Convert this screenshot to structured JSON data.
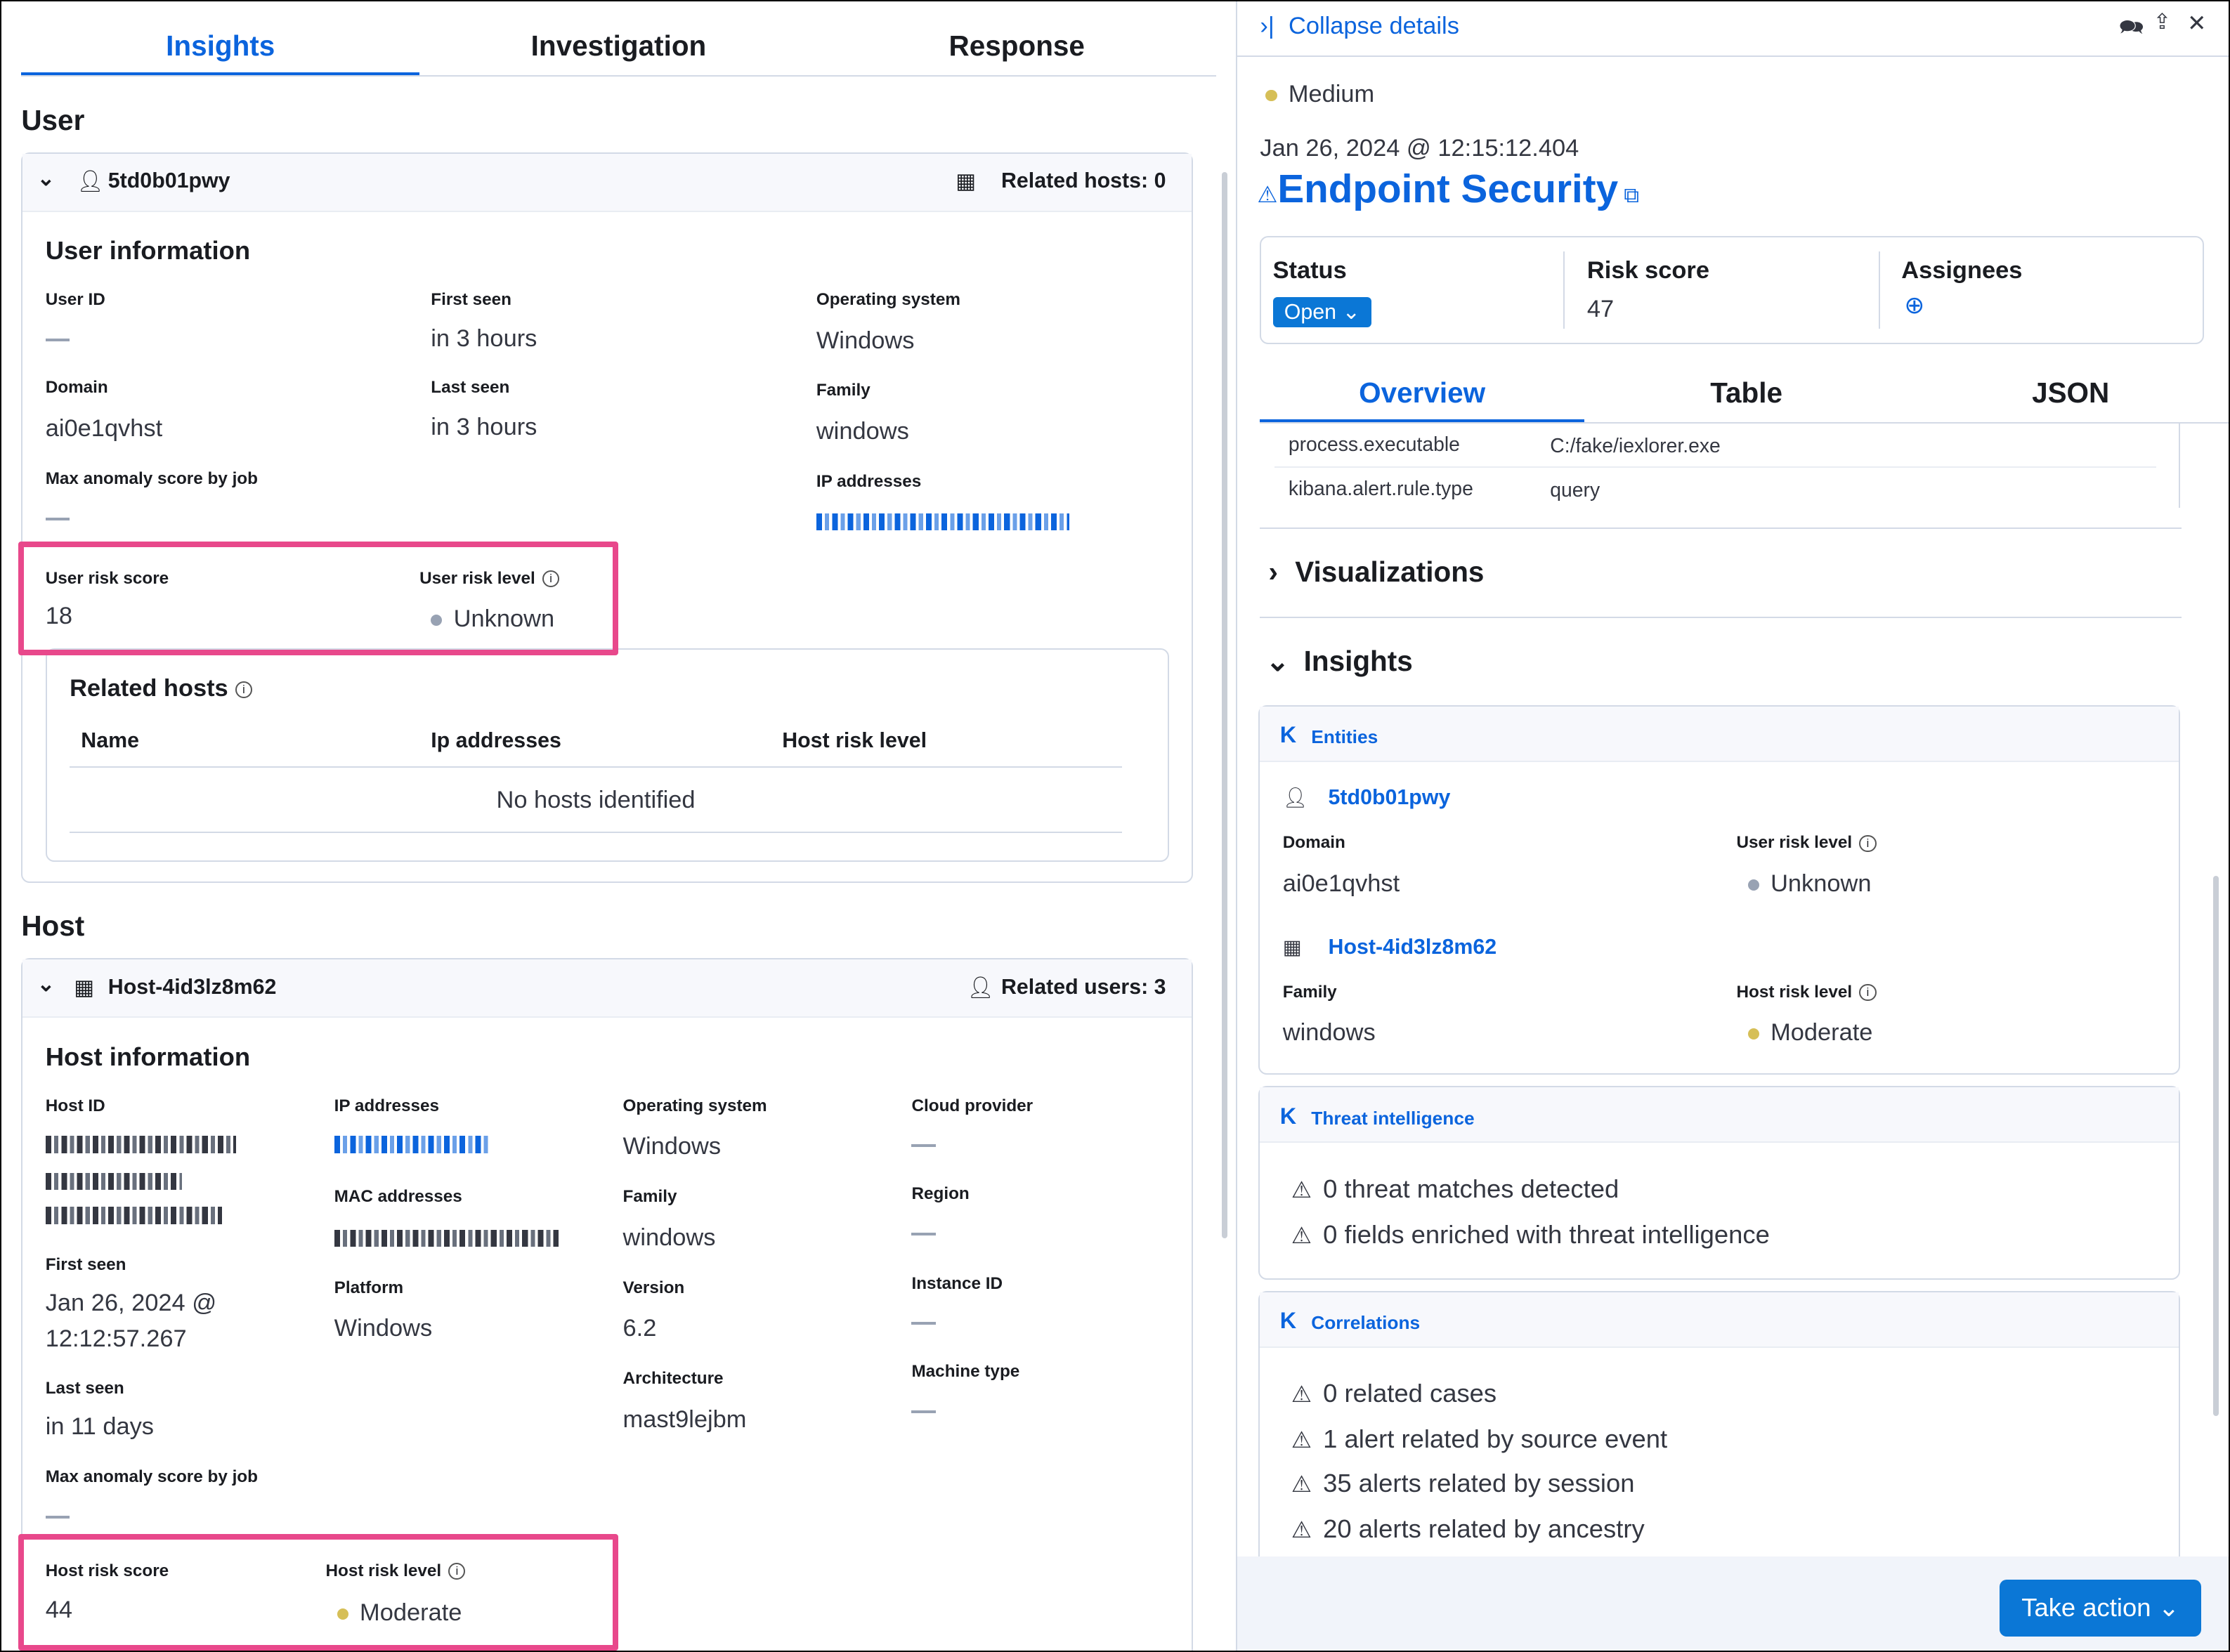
{
  "tabs": [
    "Insights",
    "Investigation",
    "Response"
  ],
  "user": {
    "section_title": "User",
    "name": "5td0b01pwy",
    "related_hosts_label": "Related hosts: 0",
    "info_title": "User information",
    "user_id_label": "User ID",
    "first_seen_label": "First seen",
    "first_seen": "in 3 hours",
    "os_label": "Operating system",
    "os": "Windows",
    "domain_label": "Domain",
    "domain": "ai0e1qvhst",
    "last_seen_label": "Last seen",
    "last_seen": "in 3 hours",
    "family_label": "Family",
    "family": "windows",
    "max_anomaly_label": "Max anomaly score by job",
    "ip_label": "IP addresses",
    "risk_score_label": "User risk score",
    "risk_score": "18",
    "risk_level_label": "User risk level",
    "risk_level": "Unknown",
    "related_hosts": {
      "title": "Related hosts",
      "columns": [
        "Name",
        "Ip addresses",
        "Host risk level"
      ],
      "empty": "No hosts identified"
    }
  },
  "host": {
    "section_title": "Host",
    "name": "Host-4id3lz8m62",
    "related_users_label": "Related users: 3",
    "info_title": "Host information",
    "host_id_label": "Host ID",
    "ip_label": "IP addresses",
    "os_label": "Operating system",
    "os": "Windows",
    "cloud_label": "Cloud provider",
    "mac_label": "MAC addresses",
    "family_label": "Family",
    "family": "windows",
    "region_label": "Region",
    "first_seen_label": "First seen",
    "first_seen": "Jan 26, 2024 @",
    "first_seen_time": "12:12:57.267",
    "platform_label": "Platform",
    "platform": "Windows",
    "version_label": "Version",
    "version": "6.2",
    "instance_label": "Instance ID",
    "last_seen_label": "Last seen",
    "last_seen": "in 11 days",
    "arch_label": "Architecture",
    "arch": "mast9lejbm",
    "machine_label": "Machine type",
    "max_anomaly_label": "Max anomaly score by job",
    "risk_score_label": "Host risk score",
    "risk_score": "44",
    "risk_level_label": "Host risk level",
    "risk_level": "Moderate"
  },
  "details": {
    "collapse_label": "Collapse details",
    "severity": "Medium",
    "timestamp": "Jan 26, 2024 @ 12:15:12.404",
    "rule_name": "Endpoint Security",
    "status_label": "Status",
    "status": "Open",
    "risk_score_label": "Risk score",
    "risk_score": "47",
    "assignees_label": "Assignees",
    "tabs": [
      "Overview",
      "Table",
      "JSON"
    ],
    "fields": [
      {
        "key": "process.executable",
        "value": "C:/fake/iexlorer.exe"
      },
      {
        "key": "kibana.alert.rule.type",
        "value": "query"
      }
    ],
    "visualizations_label": "Visualizations",
    "insights_label": "Insights",
    "entities": {
      "title": "Entities",
      "user": "5td0b01pwy",
      "domain_label": "Domain",
      "domain": "ai0e1qvhst",
      "user_risk_label": "User risk level",
      "user_risk": "Unknown",
      "host": "Host-4id3lz8m62",
      "family_label": "Family",
      "family": "windows",
      "host_risk_label": "Host risk level",
      "host_risk": "Moderate"
    },
    "threat": {
      "title": "Threat intelligence",
      "items": [
        "0 threat matches detected",
        "0 fields enriched with threat intelligence"
      ]
    },
    "correlations": {
      "title": "Correlations",
      "items": [
        "0 related cases",
        "1 alert related by source event",
        "35 alerts related by session",
        "20 alerts related by ancestry"
      ]
    },
    "take_action": "Take action"
  },
  "colors": {
    "accent": "#0b64dd",
    "highlight": "#e8488b",
    "medium": "#d6bf57",
    "unknown": "#98a2b3",
    "moderate": "#d6bf57"
  }
}
